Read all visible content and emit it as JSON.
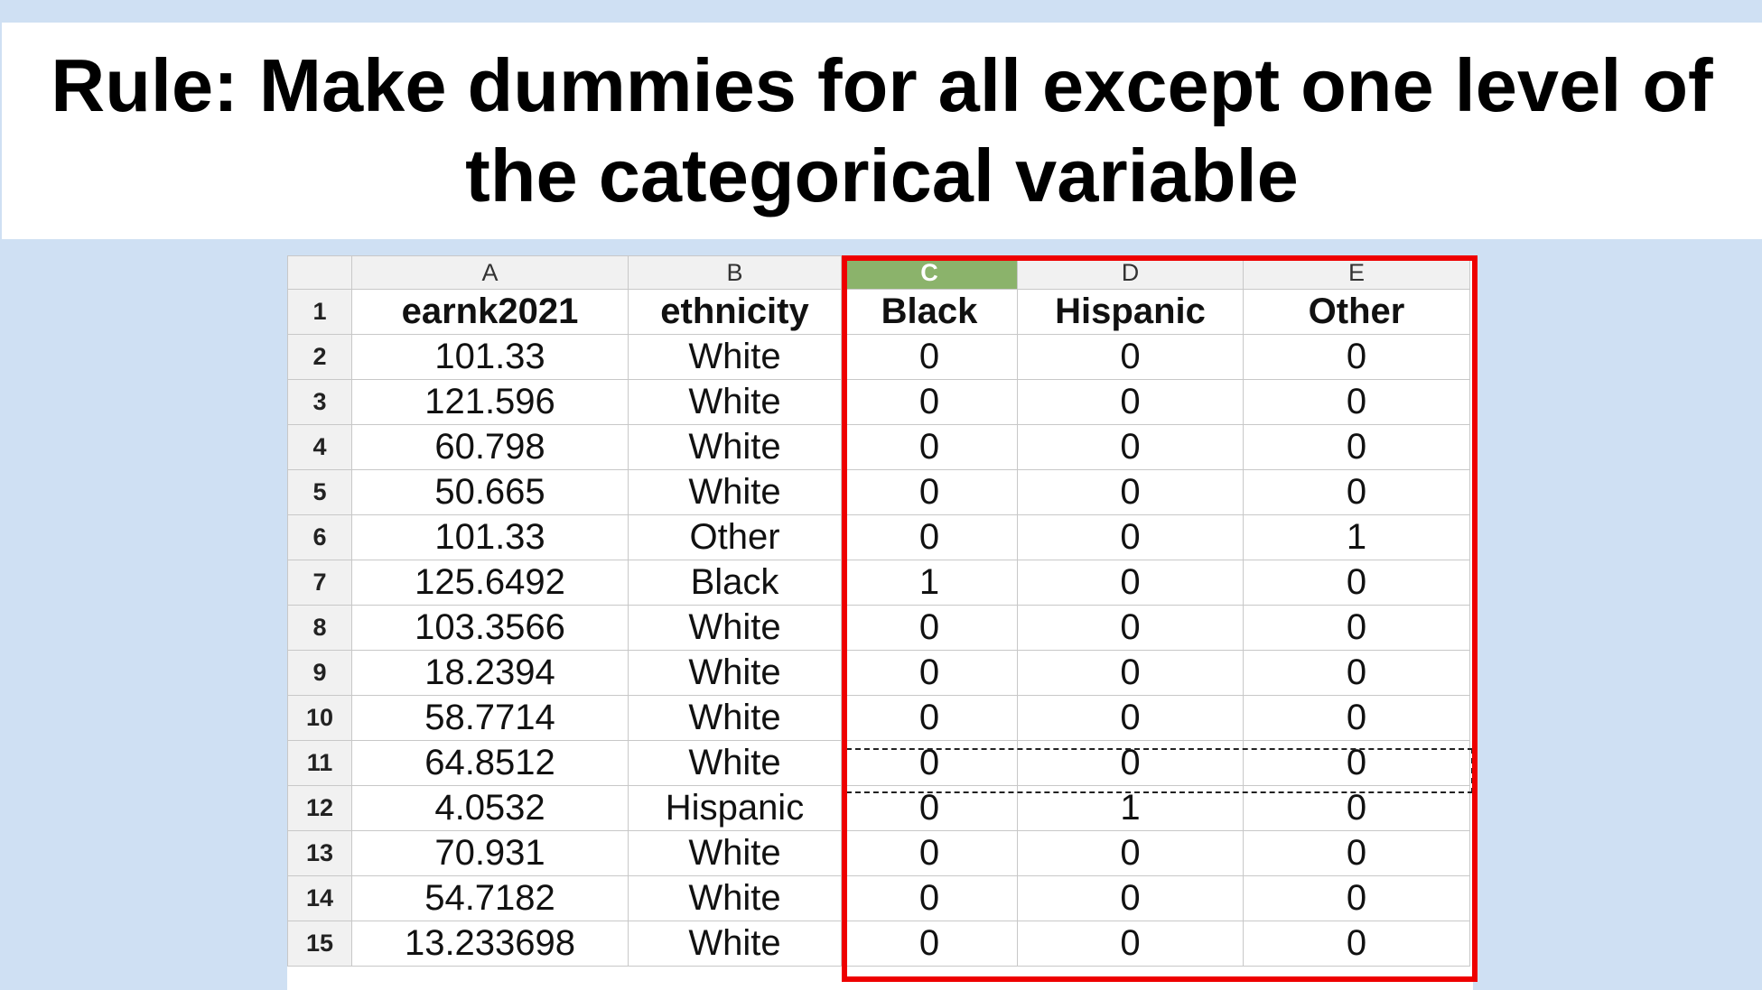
{
  "title": {
    "line1": "Rule: Make dummies for all except one level of",
    "line2": "the categorical variable"
  },
  "spreadsheet": {
    "column_letters": [
      "A",
      "B",
      "C",
      "D",
      "E"
    ],
    "selected_column": "C",
    "headers": [
      "earnk2021",
      "ethnicity",
      "Black",
      "Hispanic",
      "Other"
    ],
    "rows": [
      {
        "num": "2",
        "cells": [
          "101.33",
          "White",
          "0",
          "0",
          "0"
        ]
      },
      {
        "num": "3",
        "cells": [
          "121.596",
          "White",
          "0",
          "0",
          "0"
        ]
      },
      {
        "num": "4",
        "cells": [
          "60.798",
          "White",
          "0",
          "0",
          "0"
        ]
      },
      {
        "num": "5",
        "cells": [
          "50.665",
          "White",
          "0",
          "0",
          "0"
        ]
      },
      {
        "num": "6",
        "cells": [
          "101.33",
          "Other",
          "0",
          "0",
          "1"
        ]
      },
      {
        "num": "7",
        "cells": [
          "125.6492",
          "Black",
          "1",
          "0",
          "0"
        ]
      },
      {
        "num": "8",
        "cells": [
          "103.3566",
          "White",
          "0",
          "0",
          "0"
        ]
      },
      {
        "num": "9",
        "cells": [
          "18.2394",
          "White",
          "0",
          "0",
          "0"
        ]
      },
      {
        "num": "10",
        "cells": [
          "58.7714",
          "White",
          "0",
          "0",
          "0"
        ]
      },
      {
        "num": "11",
        "cells": [
          "64.8512",
          "White",
          "0",
          "0",
          "0"
        ]
      },
      {
        "num": "12",
        "cells": [
          "4.0532",
          "Hispanic",
          "0",
          "1",
          "0"
        ]
      },
      {
        "num": "13",
        "cells": [
          "70.931",
          "White",
          "0",
          "0",
          "0"
        ]
      },
      {
        "num": "14",
        "cells": [
          "54.7182",
          "White",
          "0",
          "0",
          "0"
        ]
      },
      {
        "num": "15",
        "cells": [
          "13.233698",
          "White",
          "0",
          "0",
          "0"
        ]
      }
    ]
  },
  "colors": {
    "background": "#cfe0f3",
    "highlight_border": "#ee0000",
    "selected_column_header": "#8bb36b"
  }
}
